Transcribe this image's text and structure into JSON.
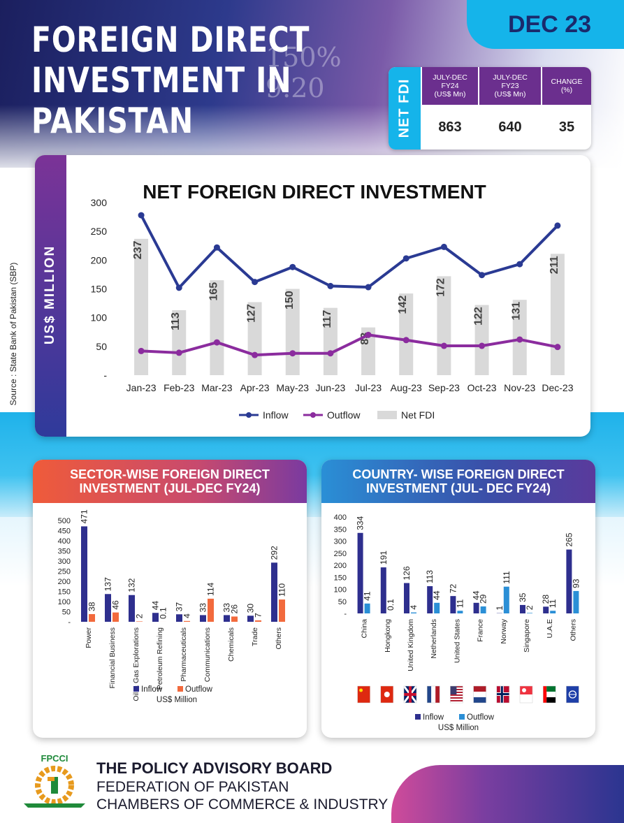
{
  "header": {
    "title_lines": [
      "FOREIGN DIRECT",
      "INVESTMENT IN",
      "PAKISTAN"
    ],
    "period_badge": "DEC 23",
    "source": "Source : State Bank of Pakistan (SBP)"
  },
  "net_fdi_table": {
    "label": "NET FDI",
    "columns": [
      {
        "header": [
          "JULY-DEC",
          "FY24",
          "(US$ Mn)"
        ],
        "value": "863"
      },
      {
        "header": [
          "JULY-DEC",
          "FY23",
          "(US$ Mn)"
        ],
        "value": "640"
      },
      {
        "header": [
          "CHANGE",
          "(%)"
        ],
        "value": "35"
      }
    ]
  },
  "colors": {
    "inflow_line": "#2a3a93",
    "outflow_line": "#8b2c9e",
    "net_bar": "#d9d9d9",
    "sector_inflow": "#2e2f8e",
    "sector_outflow": "#f26a3d",
    "country_inflow": "#2e2f8e",
    "country_outflow": "#2b8fd6",
    "sector_header": "#e0574f",
    "country_header": "#2f4fae"
  },
  "chart_data": [
    {
      "type": "line",
      "title": "NET FOREIGN DIRECT INVESTMENT",
      "ylabel": "US$ MILLION",
      "y_ticks": [
        "-",
        "50",
        "100",
        "150",
        "200",
        "250",
        "300"
      ],
      "ylim": [
        0,
        300
      ],
      "categories": [
        "Jan-23",
        "Feb-23",
        "Mar-23",
        "Apr-23",
        "May-23",
        "Jun-23",
        "Jul-23",
        "Aug-23",
        "Sep-23",
        "Oct-23",
        "Nov-23",
        "Dec-23"
      ],
      "series": [
        {
          "name": "Inflow",
          "kind": "line",
          "values": [
            278,
            152,
            222,
            162,
            188,
            155,
            153,
            203,
            223,
            174,
            193,
            260
          ]
        },
        {
          "name": "Outflow",
          "kind": "line",
          "values": [
            42,
            39,
            57,
            35,
            38,
            38,
            70,
            61,
            51,
            51,
            62,
            49
          ]
        },
        {
          "name": "Net FDI",
          "kind": "bar",
          "values": [
            237,
            113,
            165,
            127,
            150,
            117,
            83,
            142,
            172,
            122,
            131,
            211
          ]
        }
      ],
      "legend": "bottom"
    },
    {
      "type": "bar",
      "title": "SECTOR-WISE FOREIGN DIRECT INVESTMENT (JUL-DEC FY24)",
      "unit_label": "US$ Million",
      "y_ticks": [
        "-",
        "50",
        "100",
        "150",
        "200",
        "250",
        "300",
        "350",
        "400",
        "450",
        "500"
      ],
      "ylim": [
        0,
        500
      ],
      "categories": [
        "Power",
        "Financial Business",
        "Oil & Gas Explorations",
        "Petroleum Refining",
        "Pharmaceuticals",
        "Communications",
        "Chemicals",
        "Trade",
        "Others"
      ],
      "series": [
        {
          "name": "Inflow",
          "values": [
            471,
            137,
            132,
            44,
            37,
            33,
            33,
            30,
            292
          ],
          "labels": [
            "471",
            "137",
            "132",
            "44",
            "37",
            "33",
            "33",
            "30",
            "292"
          ]
        },
        {
          "name": "Outflow",
          "values": [
            38,
            46,
            2,
            0.1,
            4,
            114,
            26,
            7,
            110
          ],
          "labels": [
            "38",
            "46",
            "2",
            "0.1",
            "4",
            "114",
            "26",
            "7",
            "110"
          ]
        }
      ],
      "legend": "bottom"
    },
    {
      "type": "bar",
      "title": "COUNTRY- WISE FOREIGN DIRECT INVESTMENT (JUL- DEC FY24)",
      "unit_label": "US$ Million",
      "y_ticks": [
        "-",
        "50",
        "100",
        "150",
        "200",
        "250",
        "300",
        "350",
        "400"
      ],
      "ylim": [
        0,
        400
      ],
      "categories": [
        "China",
        "Hongkong",
        "United Kingdom",
        "Netherlands",
        "United States",
        "France",
        "Norway",
        "Singapore",
        "U.A.E",
        "Others"
      ],
      "series": [
        {
          "name": "Inflow",
          "values": [
            334,
            191,
            126,
            113,
            72,
            44,
            1,
            35,
            28,
            265
          ],
          "labels": [
            "334",
            "191",
            "126",
            "113",
            "72",
            "44",
            "1",
            "35",
            "28",
            "265"
          ]
        },
        {
          "name": "Outflow",
          "values": [
            41,
            0.1,
            4,
            44,
            11,
            29,
            111,
            2,
            11,
            93
          ],
          "labels": [
            "41",
            "0.1",
            "4",
            "44",
            "11",
            "29",
            "111",
            "2",
            "11",
            "93"
          ]
        }
      ],
      "flags": [
        "china-flag",
        "hongkong-flag",
        "uk-flag",
        "netherlands-flag",
        "usa-flag",
        "france-flag",
        "norway-flag",
        "singapore-flag",
        "uae-flag",
        "globe-icon"
      ],
      "legend": "bottom"
    }
  ],
  "footer": {
    "logo_text": "FPCCI",
    "org_lines": [
      "THE POLICY ADVISORY BOARD",
      "FEDERATION OF PAKISTAN",
      "CHAMBERS OF COMMERCE & INDUSTRY"
    ]
  }
}
